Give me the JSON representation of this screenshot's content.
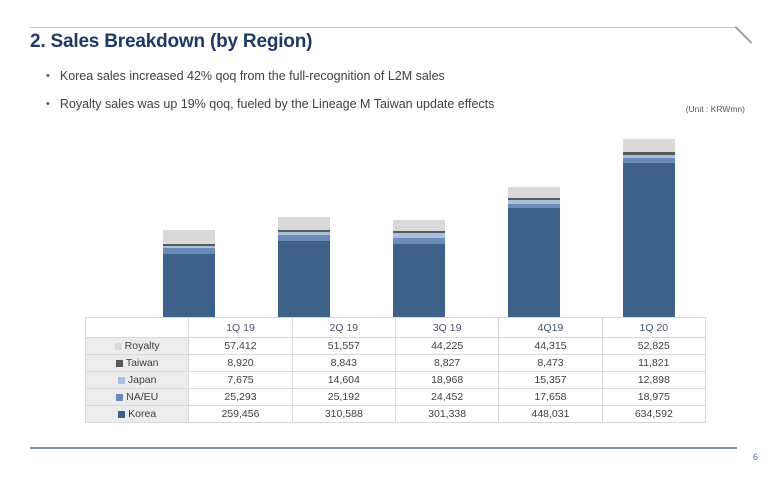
{
  "slide": {
    "title": "2. Sales Breakdown (by Region)",
    "bullets": [
      "Korea sales increased 42% qoq from the full-recognition of L2M sales",
      "Royalty sales was up 19% qoq, fueled by the Lineage M Taiwan update effects"
    ],
    "bullet_glyph": "•",
    "unit_label": "(Unit : KRWmn)",
    "page_number": "6"
  },
  "chart_data": {
    "type": "bar",
    "stacked": true,
    "title": "",
    "xlabel": "",
    "ylabel": "",
    "unit": "KRWmn",
    "gridlines": false,
    "legend_position": "table-row-labels",
    "categories": [
      "1Q 19",
      "2Q 19",
      "3Q 19",
      "4Q19",
      "1Q 20"
    ],
    "series": [
      {
        "name": "Royalty",
        "color": "#d9d9d9",
        "values": [
          57412,
          51557,
          44225,
          44315,
          52825
        ]
      },
      {
        "name": "Taiwan",
        "color": "#595959",
        "values": [
          8920,
          8843,
          8827,
          8473,
          11821
        ]
      },
      {
        "name": "Japan",
        "color": "#a9c0dc",
        "values": [
          7675,
          14604,
          18968,
          15357,
          12898
        ]
      },
      {
        "name": "NA/EU",
        "color": "#6b8cb8",
        "values": [
          25293,
          25192,
          24452,
          17658,
          18975
        ]
      },
      {
        "name": "Korea",
        "color": "#3e6189",
        "values": [
          259456,
          310588,
          301338,
          448031,
          634592
        ]
      }
    ],
    "category_totals": [
      358756,
      410784,
      397810,
      533834,
      731111
    ]
  },
  "table": {
    "col_headers": [
      "1Q 19",
      "2Q 19",
      "3Q 19",
      "4Q19",
      "1Q 20"
    ],
    "rows": [
      {
        "label": "Royalty",
        "values": [
          "57,412",
          "51,557",
          "44,225",
          "44,315",
          "52,825"
        ]
      },
      {
        "label": "Taiwan",
        "values": [
          "8,920",
          "8,843",
          "8,827",
          "8,473",
          "11,821"
        ]
      },
      {
        "label": "Japan",
        "values": [
          "7,675",
          "14,604",
          "18,968",
          "15,357",
          "12,898"
        ]
      },
      {
        "label": "NA/EU",
        "values": [
          "25,293",
          "25,192",
          "24,452",
          "17,658",
          "18,975"
        ]
      },
      {
        "label": "Korea",
        "values": [
          "259,456",
          "310,588",
          "301,338",
          "448,031",
          "634,592"
        ]
      }
    ]
  }
}
